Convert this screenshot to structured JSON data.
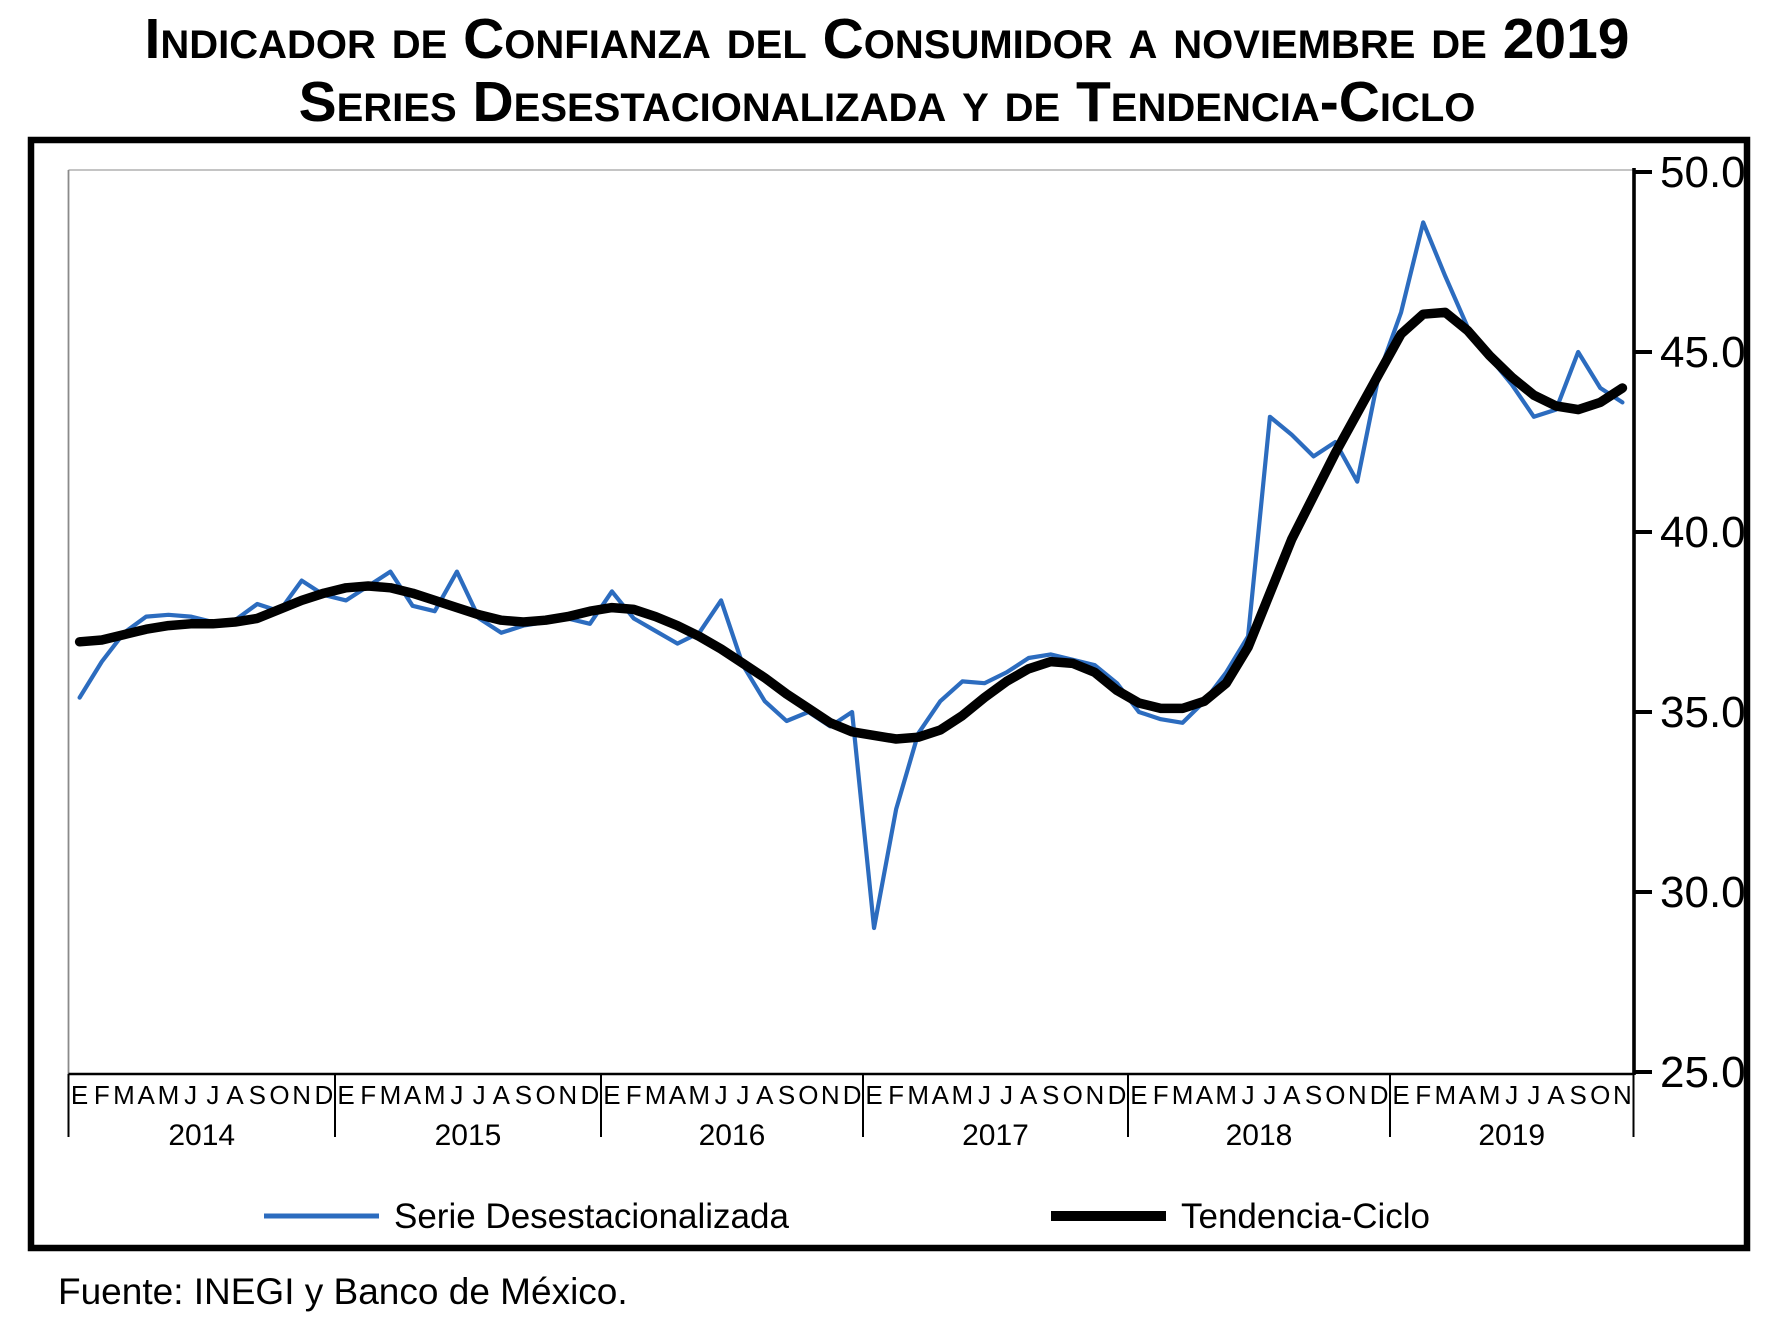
{
  "title": {
    "line1": "Indicador de Confianza del Consumidor a noviembre de 2019",
    "line2": "Series Desestacionalizada y de Tendencia-Ciclo"
  },
  "source_note": "Fuente: INEGI y Banco de México.",
  "colors": {
    "series_blue": "#2C6CBF",
    "trend_black": "#000000",
    "frame_black": "#000000",
    "plot_border_gray": "#b0b0b0"
  },
  "chart_data": {
    "type": "line",
    "title": "Indicador de Confianza del Consumidor a noviembre de 2019 — Series desestacionalizada y de tendencia-ciclo",
    "xlabel": "",
    "ylabel": "",
    "ylim": [
      25.0,
      50.0
    ],
    "grid": false,
    "legend_position": "bottom",
    "y_ticks": [
      {
        "label": "50.0",
        "value": 50.0
      },
      {
        "label": "45.0",
        "value": 45.0
      },
      {
        "label": "40.0",
        "value": 40.0
      },
      {
        "label": "35.0",
        "value": 35.0
      },
      {
        "label": "30.0",
        "value": 30.0
      },
      {
        "label": "25.0",
        "value": 25.0
      }
    ],
    "x_axis": {
      "month_letters": [
        "E",
        "F",
        "M",
        "A",
        "M",
        "J",
        "J",
        "A",
        "S",
        "O",
        "N",
        "D"
      ],
      "years": [
        {
          "label": "2014",
          "n_months": 12
        },
        {
          "label": "2015",
          "n_months": 12
        },
        {
          "label": "2016",
          "n_months": 12
        },
        {
          "label": "2017",
          "n_months": 12
        },
        {
          "label": "2018",
          "n_months": 12
        },
        {
          "label": "2019",
          "n_months": 11
        }
      ]
    },
    "series": [
      {
        "name": "Serie Desestacionalizada",
        "color": "#2C6CBF",
        "stroke_width": 4.2,
        "values": [
          35.4,
          36.4,
          37.2,
          37.65,
          37.7,
          37.65,
          37.5,
          37.55,
          38.0,
          37.8,
          38.65,
          38.25,
          38.1,
          38.5,
          38.9,
          37.95,
          37.8,
          38.9,
          37.6,
          37.2,
          37.4,
          37.5,
          37.6,
          37.45,
          38.35,
          37.6,
          37.25,
          36.9,
          37.2,
          38.1,
          36.3,
          35.3,
          34.75,
          35.0,
          34.6,
          35.0,
          29.0,
          32.3,
          34.4,
          35.3,
          35.85,
          35.8,
          36.1,
          36.5,
          36.6,
          36.45,
          36.3,
          35.8,
          35.0,
          34.8,
          34.7,
          35.3,
          36.1,
          37.1,
          43.2,
          42.7,
          42.1,
          42.5,
          41.4,
          44.4,
          46.1,
          48.6,
          47.1,
          45.7,
          44.85,
          44.1,
          43.2,
          43.4,
          45.0,
          44.0,
          43.6
        ]
      },
      {
        "name": "Tendencia-Ciclo",
        "color": "#000000",
        "stroke_width": 9.5,
        "values": [
          36.95,
          37.0,
          37.15,
          37.3,
          37.4,
          37.45,
          37.45,
          37.5,
          37.6,
          37.85,
          38.1,
          38.3,
          38.45,
          38.5,
          38.45,
          38.3,
          38.1,
          37.9,
          37.7,
          37.55,
          37.5,
          37.55,
          37.65,
          37.8,
          37.9,
          37.85,
          37.65,
          37.4,
          37.1,
          36.75,
          36.35,
          35.95,
          35.5,
          35.1,
          34.7,
          34.45,
          34.35,
          34.25,
          34.3,
          34.5,
          34.9,
          35.4,
          35.85,
          36.2,
          36.4,
          36.35,
          36.1,
          35.6,
          35.25,
          35.1,
          35.1,
          35.3,
          35.8,
          36.8,
          38.3,
          39.8,
          41.0,
          42.2,
          43.3,
          44.4,
          45.5,
          46.05,
          46.1,
          45.6,
          44.9,
          44.3,
          43.8,
          43.5,
          43.4,
          43.6,
          44.0
        ]
      }
    ]
  }
}
